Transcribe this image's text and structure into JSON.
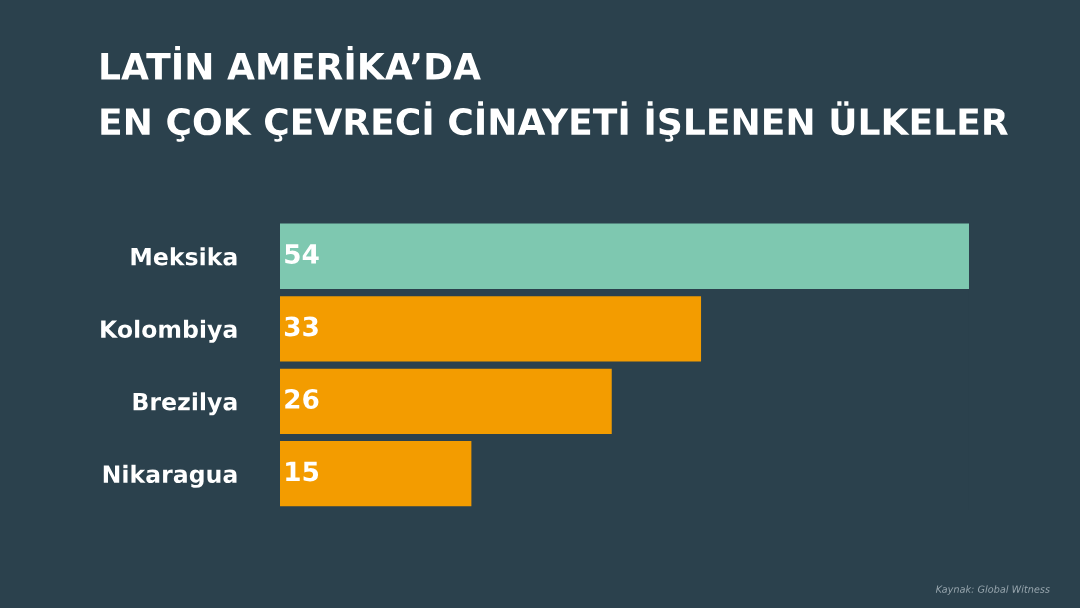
{
  "chart_data": {
    "type": "bar",
    "orientation": "horizontal",
    "title": "LATİN AMERİKA’DA\nEN ÇOK ÇEVRECİ CİNAYETİ İŞLENEN ÜLKELER",
    "categories": [
      "Meksika",
      "Kolombiya",
      "Brezilya",
      "Nikaragua"
    ],
    "values": [
      54,
      33,
      26,
      15
    ],
    "colors": [
      "#7ec8b0",
      "#f39c00",
      "#f39c00",
      "#f39c00"
    ],
    "data_labels": true,
    "grid": false,
    "annotations": [
      "Kaynak: Global Witness"
    ]
  }
}
